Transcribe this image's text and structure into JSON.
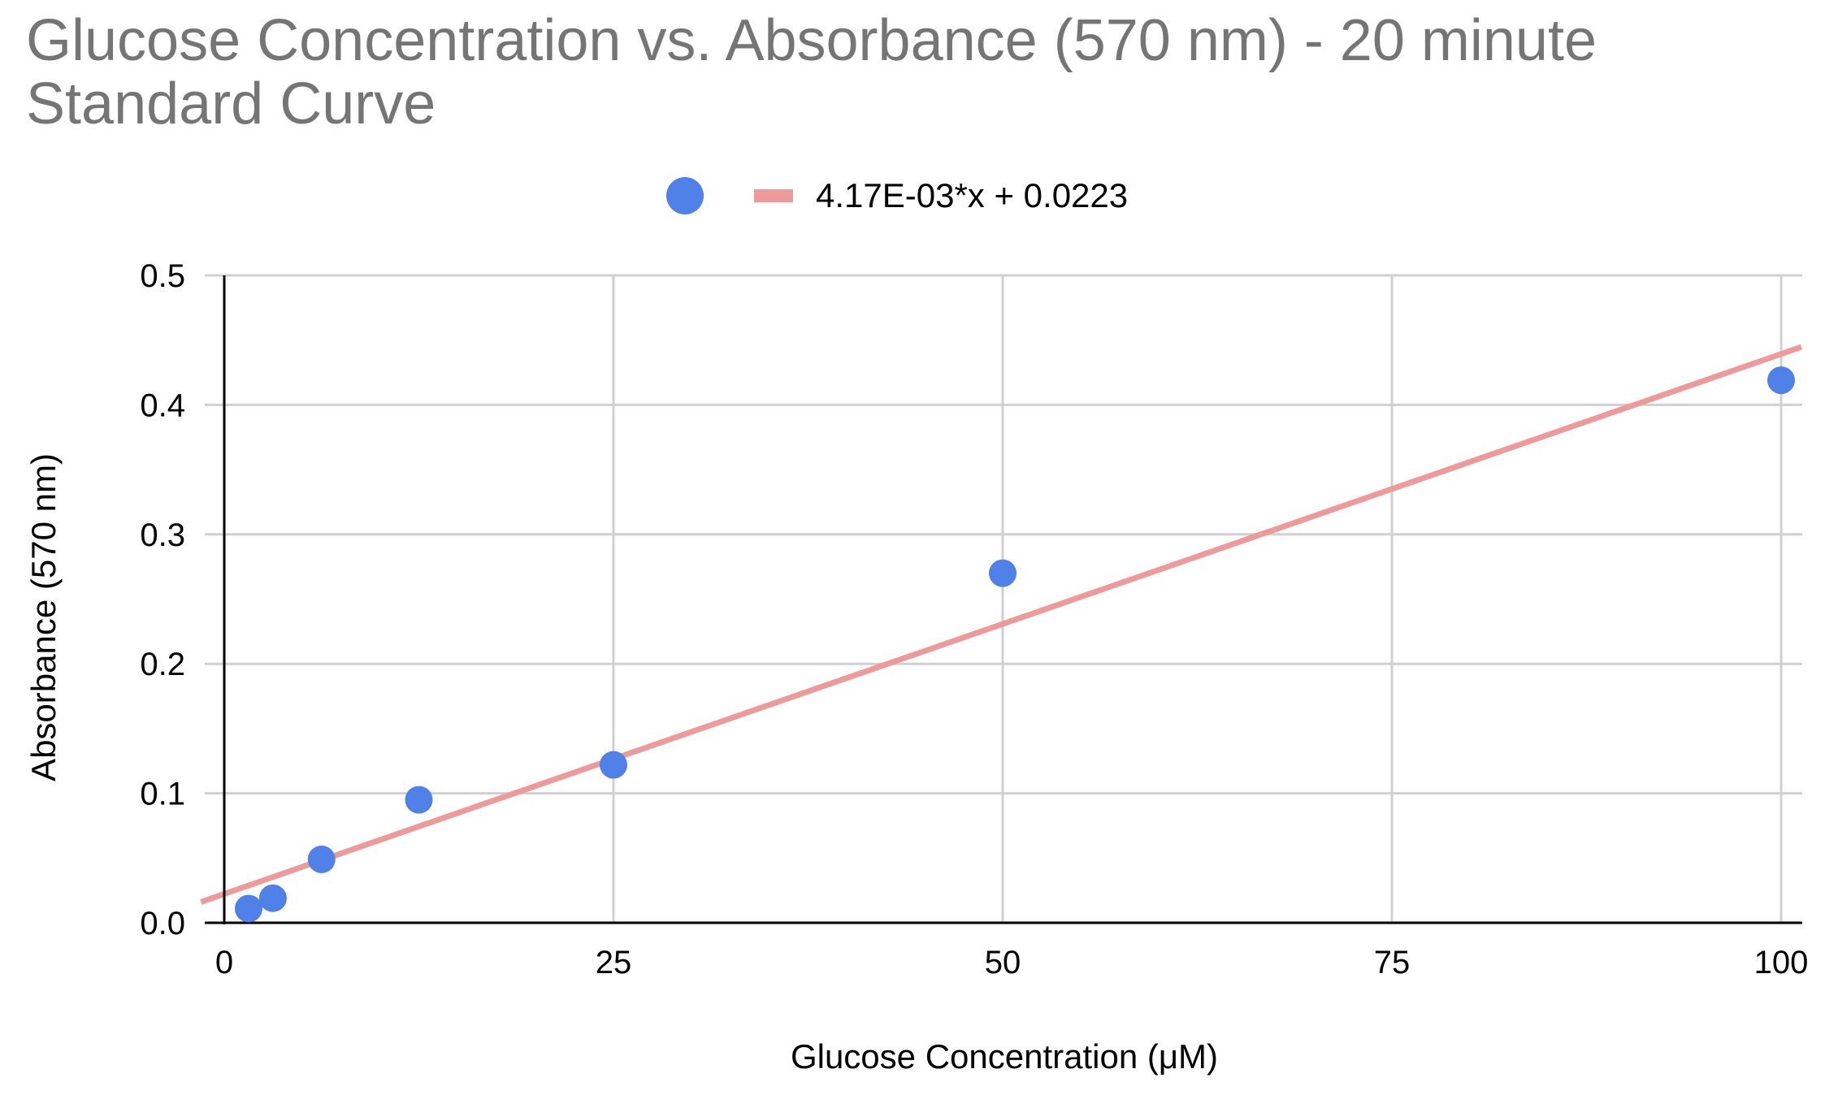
{
  "chart_data": {
    "type": "scatter",
    "title_lines": [
      "Glucose Concentration vs. Absorbance (570 nm) - 20 minute",
      "Standard Curve"
    ],
    "xlabel": "Glucose Concentration (μM)",
    "ylabel": "Absorbance (570 nm)",
    "xlim": [
      0,
      100
    ],
    "ylim": [
      0,
      0.5
    ],
    "x_ticks": [
      0,
      25,
      50,
      75,
      100
    ],
    "x_tick_labels": [
      "0",
      "25",
      "50",
      "75",
      "100"
    ],
    "y_ticks": [
      0,
      0.1,
      0.2,
      0.3,
      0.4,
      0.5
    ],
    "y_tick_labels": [
      "0.0",
      "0.1",
      "0.2",
      "0.3",
      "0.4",
      "0.5"
    ],
    "grid": true,
    "legend_position": "top-center",
    "series": [
      {
        "kind": "points",
        "color": "#4f81e8",
        "x": [
          1.5625,
          3.125,
          6.25,
          12.5,
          25,
          50,
          100
        ],
        "y": [
          0.011,
          0.019,
          0.049,
          0.095,
          0.122,
          0.27,
          0.419
        ]
      },
      {
        "kind": "trendline",
        "name": "4.17E-03*x + 0.0223",
        "color": "#ef9a9a",
        "slope": 0.00417,
        "intercept": 0.0223
      }
    ]
  }
}
